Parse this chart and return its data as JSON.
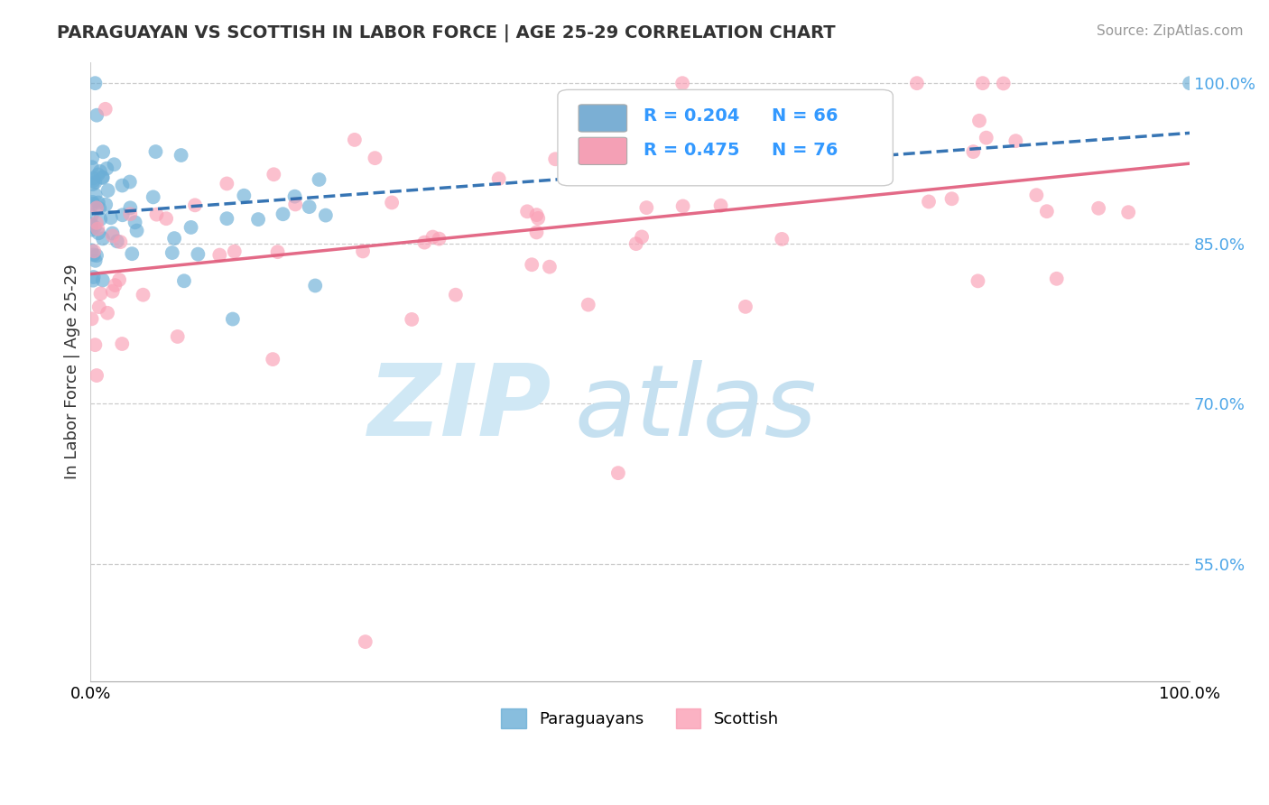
{
  "title": "PARAGUAYAN VS SCOTTISH IN LABOR FORCE | AGE 25-29 CORRELATION CHART",
  "source": "Source: ZipAtlas.com",
  "ylabel": "In Labor Force | Age 25-29",
  "xlim": [
    0.0,
    1.0
  ],
  "ylim": [
    0.44,
    1.02
  ],
  "yticks": [
    0.55,
    0.7,
    0.85,
    1.0
  ],
  "ytick_labels": [
    "55.0%",
    "70.0%",
    "85.0%",
    "100.0%"
  ],
  "paraguayan_color": "#6baed6",
  "scottish_color": "#fa9fb5",
  "trend_blue_color": "#2166ac",
  "trend_pink_color": "#e05a7a",
  "legend_blue_color": "#7bafd4",
  "legend_pink_color": "#f4a0b5",
  "R_paraguayan": 0.204,
  "N_paraguayan": 66,
  "R_scottish": 0.475,
  "N_scottish": 76,
  "watermark_color": "#d0e8f5"
}
